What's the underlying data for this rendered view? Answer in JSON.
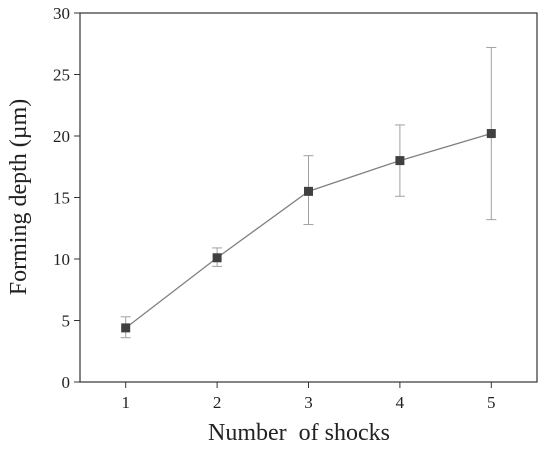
{
  "chart_data": {
    "type": "line",
    "title": "",
    "xlabel": "Number  of shocks",
    "ylabel": "Forming depth (µm)",
    "xlim": [
      0.5,
      5.5
    ],
    "ylim": [
      0,
      30
    ],
    "x_ticks": [
      1,
      2,
      3,
      4,
      5
    ],
    "y_ticks": [
      0,
      5,
      10,
      15,
      20,
      25,
      30
    ],
    "grid": false,
    "legend": "none",
    "series": [
      {
        "x": [
          1,
          2,
          3,
          4,
          5
        ],
        "y": [
          4.4,
          10.1,
          15.5,
          18.0,
          20.2
        ],
        "error_low": [
          3.6,
          9.4,
          12.8,
          15.1,
          13.2
        ],
        "error_high": [
          5.3,
          10.9,
          18.4,
          20.9,
          27.2
        ],
        "color": "#808080",
        "marker_color": "#404040",
        "marker": "square"
      }
    ]
  }
}
